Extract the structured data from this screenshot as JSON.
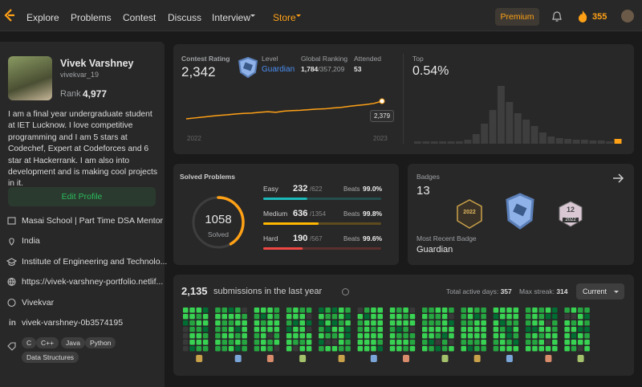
{
  "nav": {
    "items": [
      "Explore",
      "Problems",
      "Contest",
      "Discuss",
      "Interview",
      "Store"
    ],
    "premium": "Premium",
    "streak": "355"
  },
  "profile": {
    "name": "Vivek Varshney",
    "username": "vivekvar_19",
    "rank_label": "Rank",
    "rank": "4,977",
    "bio": "I am a final year undergraduate student at IET Lucknow. I love competitive programming and I am 5 stars at Codechef, Expert at Codeforces and 6 star at Hackerrank. I am also into development and is making cool projects in it.",
    "edit": "Edit Profile",
    "work": "Masai School | Part Time DSA Mentor",
    "location": "India",
    "school": "Institute of Engineering and Technolo...",
    "website": "https://vivek-varshney-portfolio.netlif...",
    "github": "Vivekvar",
    "linkedin": "vivek-varshney-0b3574195",
    "tags": [
      "C",
      "C++",
      "Java",
      "Python",
      "Data Structures"
    ]
  },
  "contest": {
    "rating_label": "Contest Rating",
    "rating": "2,342",
    "level_label": "Level",
    "level": "Guardian",
    "ranking_label": "Global Ranking",
    "ranking": "1,784",
    "ranking_total": "/357,209",
    "attended_label": "Attended",
    "attended": "53",
    "history": [
      1760,
      1790,
      1820,
      1850,
      1880,
      1900,
      1930,
      1950,
      1960,
      1990,
      2010,
      1990,
      2030,
      2050,
      2060,
      2080,
      2100,
      2110,
      2140,
      2160,
      2200,
      2230,
      2260,
      2300,
      2379
    ],
    "history_years": [
      "2022",
      "2023"
    ],
    "last_label": "2,379",
    "line_color": "#ffa116",
    "top_label": "Top",
    "top": "0.54%",
    "distribution": [
      3,
      3,
      3,
      3,
      3,
      3,
      5,
      12,
      25,
      42,
      72,
      52,
      38,
      30,
      22,
      14,
      9,
      7,
      6,
      5,
      5,
      4,
      4,
      3,
      6
    ],
    "bar_color": "#3e3e3e",
    "highlight_color": "#ffa116"
  },
  "solved": {
    "title": "Solved Problems",
    "total": 1058,
    "total_caption": "Solved",
    "ring_color": "#ffa116",
    "rows": [
      {
        "name": "Easy",
        "solved": 232,
        "total": 622,
        "total_label": "/622",
        "beats_label": "Beats",
        "beats": "99.0%",
        "color": "#1cbaba"
      },
      {
        "name": "Medium",
        "solved": 636,
        "total": 1354,
        "total_label": "/1354",
        "beats_label": "Beats",
        "beats": "99.8%",
        "color": "#ffb700"
      },
      {
        "name": "Hard",
        "solved": 190,
        "total": 567,
        "total_label": "/567",
        "beats_label": "Beats",
        "beats": "99.6%",
        "color": "#ef4743"
      }
    ]
  },
  "badges": {
    "title": "Badges",
    "count": "13",
    "badge_texts": [
      "2022",
      "12",
      "2022"
    ],
    "recent_label": "Most Recent Badge",
    "recent": "Guardian"
  },
  "submissions": {
    "count": "2,135",
    "caption": "submissions in the last year",
    "active_label": "Total active days:",
    "active": "357",
    "streak_label": "Max streak:",
    "streak": "314",
    "selector": "Current"
  }
}
